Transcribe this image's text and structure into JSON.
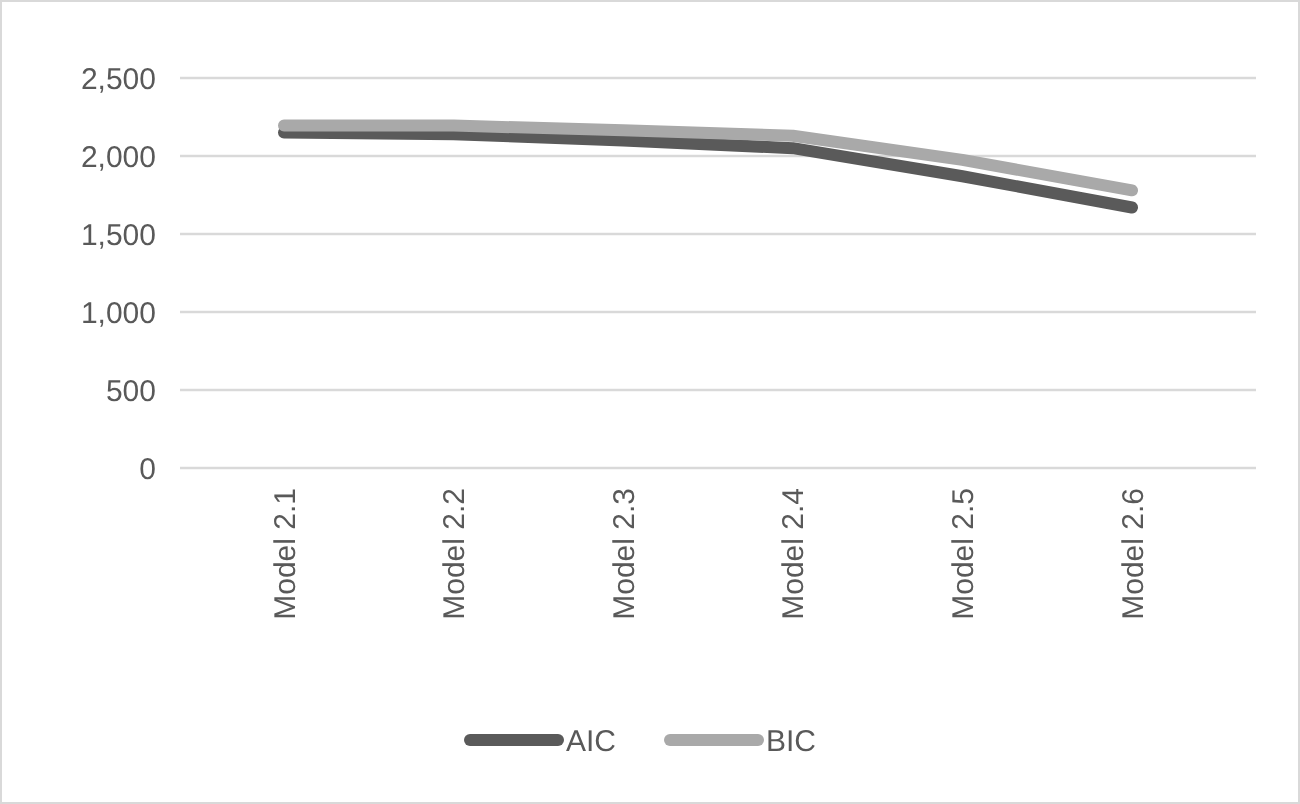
{
  "chart_data": {
    "type": "line",
    "categories": [
      "Model 2.1",
      "Model 2.2",
      "Model 2.3",
      "Model 2.4",
      "Model 2.5",
      "Model 2.6"
    ],
    "series": [
      {
        "name": "AIC",
        "color": "#5a5a5a",
        "values": [
          2150,
          2140,
          2100,
          2050,
          1870,
          1670
        ]
      },
      {
        "name": "BIC",
        "color": "#a9a9a9",
        "values": [
          2195,
          2195,
          2165,
          2130,
          1975,
          1780
        ]
      }
    ],
    "ylim": [
      0,
      2500
    ],
    "yticks": [
      0,
      500,
      {
        "value": 1000,
        "label": "1,000"
      },
      {
        "value": 1500,
        "label": "1,500"
      },
      {
        "value": 2000,
        "label": "2,000"
      },
      {
        "value": 2500,
        "label": "2,500"
      }
    ],
    "grid": "y",
    "legend": "bottom",
    "marker": "none",
    "line_style": "solid"
  }
}
